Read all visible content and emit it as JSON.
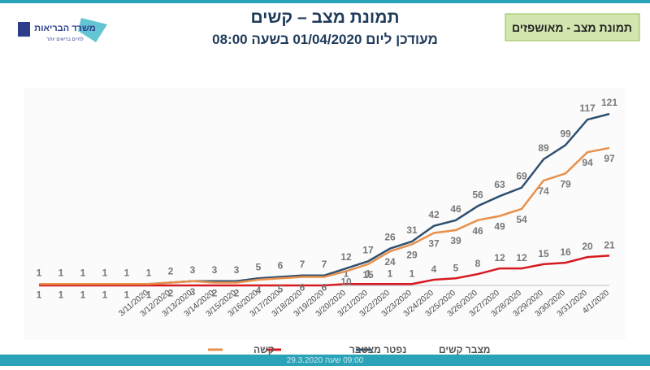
{
  "header": {
    "title": "תמונת מצב – קשים",
    "subtitle": "מעודכן ליום 01/04/2020 בשעה 08:00",
    "badge": "תמונת מצב - מאושפזים",
    "logo": "משרד הבריאות",
    "logo_tagline": "לחיים בריאים יותר",
    "footer": "09:00 שעה 29.3.2020"
  },
  "chart_data": {
    "type": "line",
    "categories": [
      null,
      null,
      null,
      null,
      null,
      "3/11/2020",
      "3/12/2020",
      "3/13/2020",
      "3/14/2020",
      "3/15/2020",
      "3/16/2020",
      "3/17/2020",
      "3/18/2020",
      "3/19/2020",
      "3/20/2020",
      "3/21/2020",
      "3/22/2020",
      "3/23/2020",
      "3/24/2020",
      "3/25/2020",
      "3/26/2020",
      "3/27/2020",
      "3/28/2020",
      "3/29/2020",
      "3/30/2020",
      "3/31/2020",
      "4/1/2020"
    ],
    "series": [
      {
        "name": "מצבר קשים",
        "color": "#2e5070",
        "values": [
          1,
          1,
          1,
          1,
          1,
          1,
          2,
          3,
          3,
          3,
          5,
          6,
          7,
          7,
          12,
          17,
          26,
          31,
          42,
          46,
          56,
          63,
          69,
          89,
          99,
          117,
          121
        ]
      },
      {
        "name": "נפטר מצטבר",
        "color": "#d71920",
        "values": [
          0,
          0,
          0,
          0,
          0,
          0,
          0,
          0,
          0,
          0,
          0,
          0,
          0,
          0,
          1,
          1,
          1,
          1,
          4,
          5,
          8,
          12,
          12,
          15,
          16,
          20,
          21
        ]
      },
      {
        "name": "קשה",
        "color": "#e8904a",
        "values": [
          1,
          1,
          1,
          1,
          1,
          1,
          2,
          3,
          2,
          2,
          4,
          5,
          6,
          6,
          10,
          15,
          24,
          29,
          37,
          39,
          46,
          49,
          54,
          74,
          79,
          94,
          97
        ]
      }
    ],
    "ylim": [
      0,
      140
    ]
  }
}
